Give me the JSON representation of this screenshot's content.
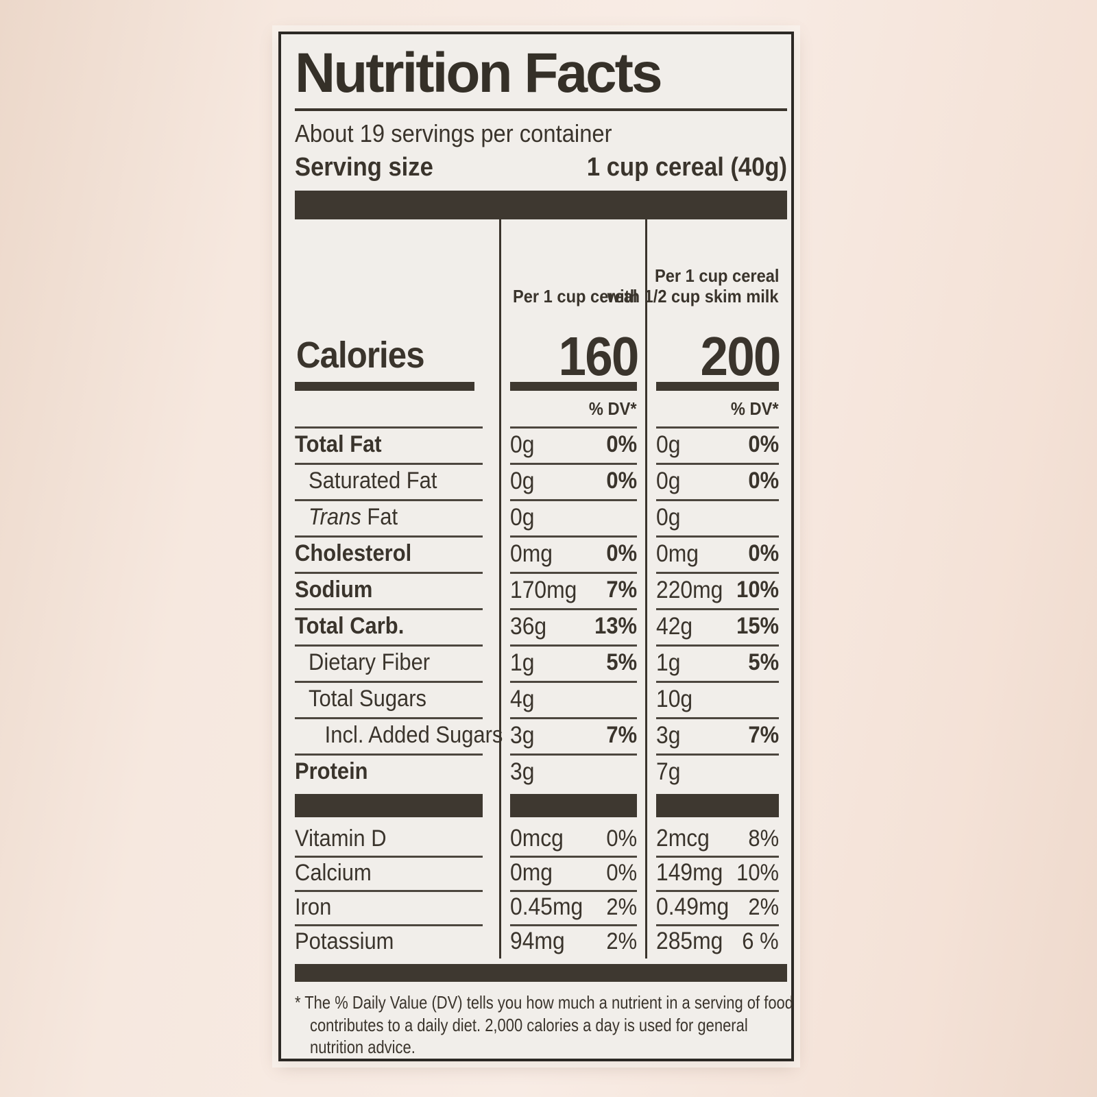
{
  "label": {
    "title": "Nutrition Facts",
    "servings_per_container": "About 19 servings per container",
    "serving_size_label": "Serving size",
    "serving_size_value": "1 cup cereal (40g)",
    "calories_label": "Calories",
    "dv_header": "% DV*",
    "columns": {
      "a_header": "Per 1 cup cereal",
      "b_header_line1": "Per 1 cup cereal",
      "b_header_line2": "with 1/2 cup skim milk",
      "a_calories": "160",
      "b_calories": "200"
    },
    "nutrients": [
      {
        "name": "Total Fat",
        "style": "bold",
        "a": "0g",
        "a_dv": "0%",
        "b": "0g",
        "b_dv": "0%"
      },
      {
        "name": "Saturated Fat",
        "style": "sub",
        "a": "0g",
        "a_dv": "0%",
        "b": "0g",
        "b_dv": "0%"
      },
      {
        "name": "Trans Fat",
        "style": "sub-italic",
        "a": "0g",
        "a_dv": "",
        "b": "0g",
        "b_dv": ""
      },
      {
        "name": "Cholesterol",
        "style": "bold",
        "a": "0mg",
        "a_dv": "0%",
        "b": "0mg",
        "b_dv": "0%"
      },
      {
        "name": "Sodium",
        "style": "bold",
        "a": "170mg",
        "a_dv": "7%",
        "b": "220mg",
        "b_dv": "10%"
      },
      {
        "name": "Total Carb.",
        "style": "bold",
        "a": "36g",
        "a_dv": "13%",
        "b": "42g",
        "b_dv": "15%"
      },
      {
        "name": "Dietary Fiber",
        "style": "sub",
        "a": "1g",
        "a_dv": "5%",
        "b": "1g",
        "b_dv": "5%"
      },
      {
        "name": "Total Sugars",
        "style": "sub",
        "a": "4g",
        "a_dv": "",
        "b": "10g",
        "b_dv": ""
      },
      {
        "name": "Incl. Added Sugars",
        "style": "sub2",
        "a": "3g",
        "a_dv": "7%",
        "b": "3g",
        "b_dv": "7%"
      },
      {
        "name": "Protein",
        "style": "bold",
        "a": "3g",
        "a_dv": "",
        "b": "7g",
        "b_dv": ""
      }
    ],
    "vitamins": [
      {
        "name": "Vitamin D",
        "a": "0mcg",
        "a_dv": "0%",
        "b": "2mcg",
        "b_dv": "8%"
      },
      {
        "name": "Calcium",
        "a": "0mg",
        "a_dv": "0%",
        "b": "149mg",
        "b_dv": "10%"
      },
      {
        "name": "Iron",
        "a": "0.45mg",
        "a_dv": "2%",
        "b": "0.49mg",
        "b_dv": "2%"
      },
      {
        "name": "Potassium",
        "a": "94mg",
        "a_dv": "2%",
        "b": "285mg",
        "b_dv": "6 %"
      }
    ],
    "footnote": "* The % Daily Value (DV) tells you how much a nutrient in a serving of food contributes to a daily diet. 2,000 calories a day is used for general nutrition advice."
  }
}
